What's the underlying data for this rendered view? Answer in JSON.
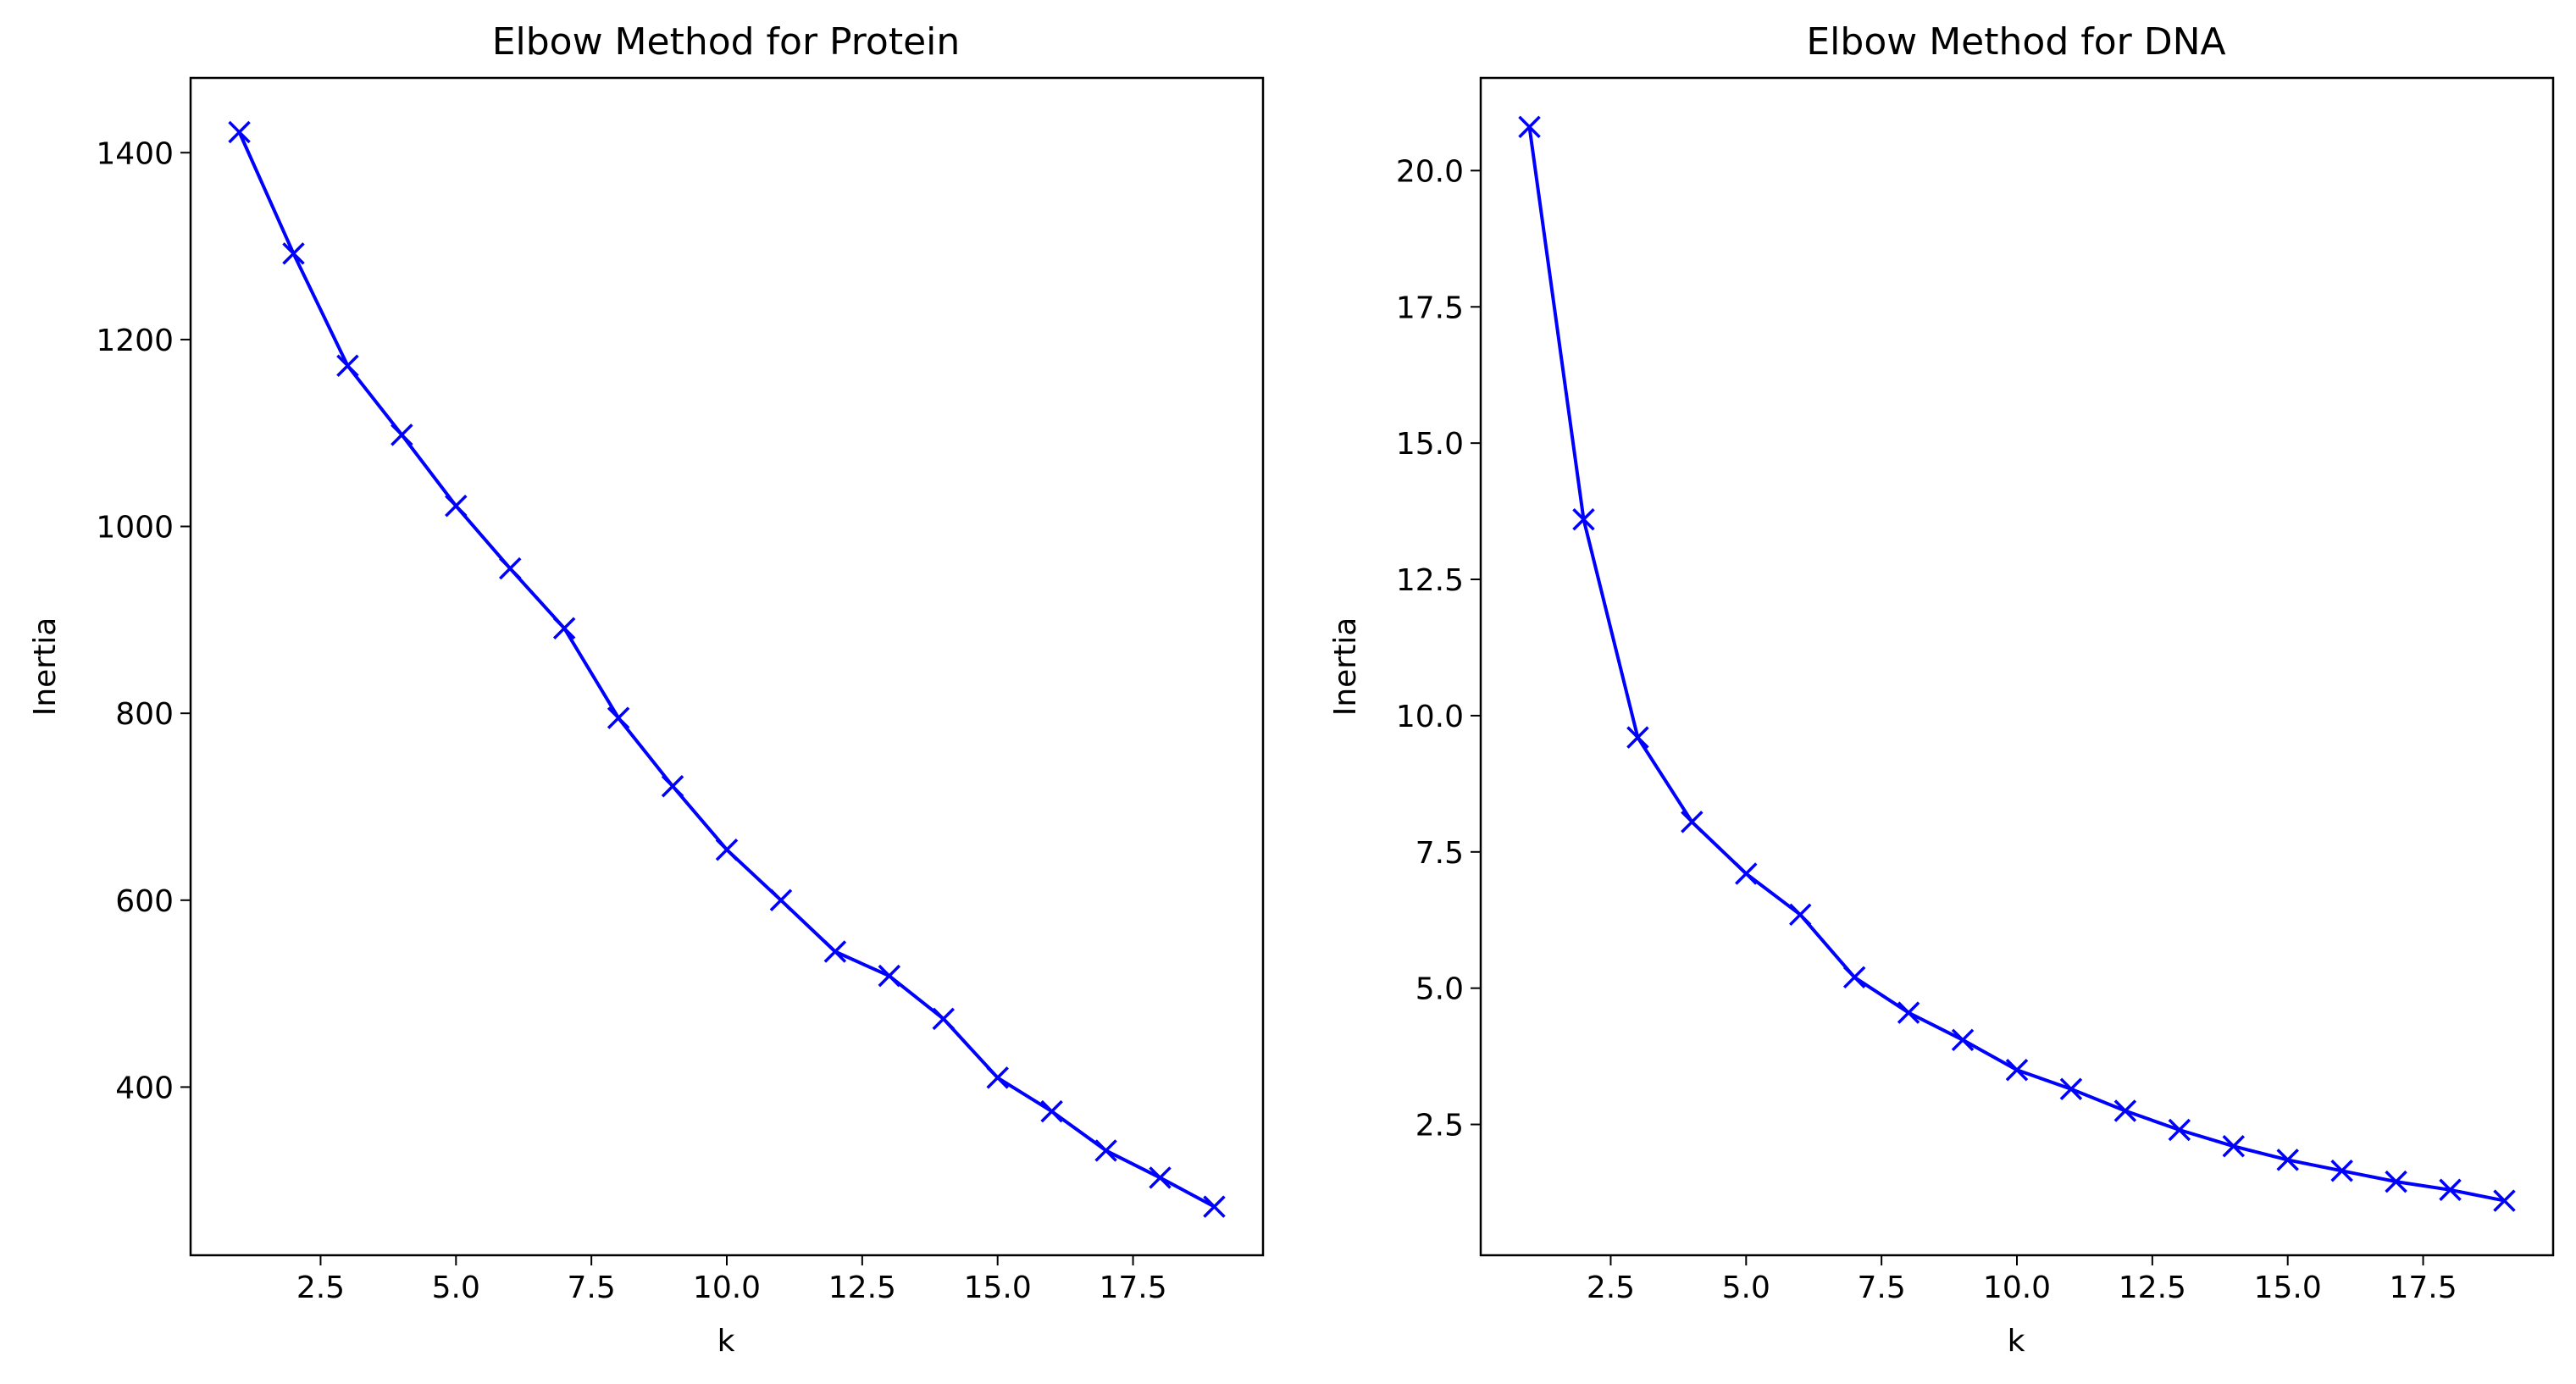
{
  "chart_data": [
    {
      "type": "line",
      "title": "Elbow Method for Protein",
      "xlabel": "k",
      "ylabel": "Inertia",
      "xlim": [
        0.1,
        19.9
      ],
      "ylim": [
        220,
        1480
      ],
      "xticks": [
        2.5,
        5.0,
        7.5,
        10.0,
        12.5,
        15.0,
        17.5
      ],
      "xtick_labels": [
        "2.5",
        "5.0",
        "7.5",
        "10.0",
        "12.5",
        "15.0",
        "17.5"
      ],
      "yticks": [
        400,
        600,
        800,
        1000,
        1200,
        1400
      ],
      "ytick_labels": [
        "400",
        "600",
        "800",
        "1000",
        "1200",
        "1400"
      ],
      "grid": false,
      "color": "#0000ff",
      "marker": "x",
      "x": [
        1,
        2,
        3,
        4,
        5,
        6,
        7,
        8,
        9,
        10,
        11,
        12,
        13,
        14,
        15,
        16,
        17,
        18,
        19
      ],
      "y": [
        1422,
        1292,
        1172,
        1098,
        1022,
        955,
        891,
        795,
        722,
        654,
        600,
        545,
        519,
        473,
        410,
        374,
        332,
        303,
        272
      ]
    },
    {
      "type": "line",
      "title": "Elbow Method for DNA",
      "xlabel": "k",
      "ylabel": "Inertia",
      "xlim": [
        0.1,
        19.9
      ],
      "ylim": [
        0.1,
        21.7
      ],
      "xticks": [
        2.5,
        5.0,
        7.5,
        10.0,
        12.5,
        15.0,
        17.5
      ],
      "xtick_labels": [
        "2.5",
        "5.0",
        "7.5",
        "10.0",
        "12.5",
        "15.0",
        "17.5"
      ],
      "yticks": [
        2.5,
        5.0,
        7.5,
        10.0,
        12.5,
        15.0,
        17.5,
        20.0
      ],
      "ytick_labels": [
        "2.5",
        "5.0",
        "7.5",
        "10.0",
        "12.5",
        "15.0",
        "17.5",
        "20.0"
      ],
      "grid": false,
      "color": "#0000ff",
      "marker": "x",
      "x": [
        1,
        2,
        3,
        4,
        5,
        6,
        7,
        8,
        9,
        10,
        11,
        12,
        13,
        14,
        15,
        16,
        17,
        18,
        19
      ],
      "y": [
        20.8,
        13.6,
        9.6,
        8.05,
        7.1,
        6.35,
        5.2,
        4.55,
        4.05,
        3.5,
        3.15,
        2.75,
        2.4,
        2.1,
        1.85,
        1.65,
        1.45,
        1.3,
        1.1
      ]
    }
  ]
}
